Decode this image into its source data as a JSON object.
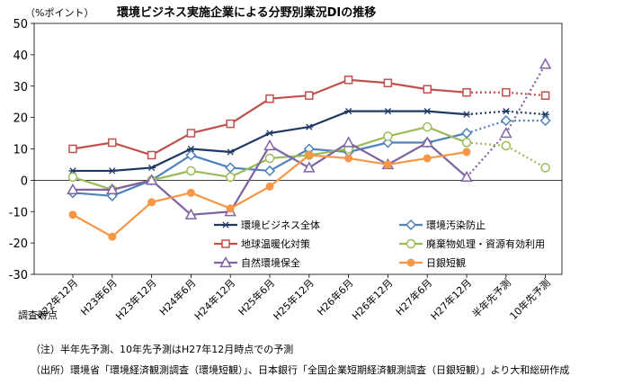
{
  "chart_data": {
    "type": "line",
    "title": "環境ビジネス実施企業による分野別業況DIの推移",
    "ylabel": "（%ポイント）",
    "xlabel": "調査時点",
    "ylim": [
      -30,
      50
    ],
    "yticks": [
      -30,
      -20,
      -10,
      0,
      10,
      20,
      30,
      40,
      50
    ],
    "grid": false,
    "categories": [
      "H22年12月",
      "H23年6月",
      "H23年12月",
      "H24年6月",
      "H24年12月",
      "H25年6月",
      "H25年12月",
      "H26年6月",
      "H26年12月",
      "H27年6月",
      "H27年12月",
      "半年先予測",
      "10年先予測"
    ],
    "forecast_start_index": 10,
    "series": [
      {
        "name": "環境ビジネス全体",
        "color": "#1f3864",
        "marker": "star",
        "values": [
          3,
          3,
          4,
          10,
          9,
          15,
          17,
          22,
          22,
          22,
          21,
          22,
          21
        ]
      },
      {
        "name": "環境汚染防止",
        "color": "#4f81bd",
        "marker": "diamond",
        "values": [
          -4,
          -5,
          0,
          8,
          4,
          3,
          10,
          9,
          12,
          12,
          15,
          19,
          19
        ]
      },
      {
        "name": "地球温暖化対策",
        "color": "#c0504d",
        "marker": "square",
        "values": [
          10,
          12,
          8,
          15,
          18,
          26,
          27,
          32,
          31,
          29,
          28,
          28,
          27
        ]
      },
      {
        "name": "廃棄物処理・資源有効利用",
        "color": "#9bbb59",
        "marker": "circle",
        "values": [
          1,
          -3,
          0,
          3,
          1,
          7,
          8,
          10,
          14,
          17,
          12,
          11,
          4
        ]
      },
      {
        "name": "自然環境保全",
        "color": "#8064a2",
        "marker": "triangle",
        "values": [
          -3,
          -3,
          0,
          -11,
          -10,
          11,
          4,
          12,
          5,
          12,
          1,
          15,
          37
        ]
      },
      {
        "name": "日銀短観",
        "color": "#f79646",
        "marker": "dot",
        "values": [
          -11,
          -18,
          -7,
          -4,
          -9,
          -2,
          8,
          7,
          5,
          7,
          9,
          null,
          null
        ]
      }
    ],
    "notes": [
      "（注）半年先予測、10年先予測はH27年12月時点での予測",
      "（出所）環境省「環境経済観測調査（環境短観）」、日本銀行「全国企業短期経済観測調査（日銀短観）」より大和総研作成"
    ]
  }
}
